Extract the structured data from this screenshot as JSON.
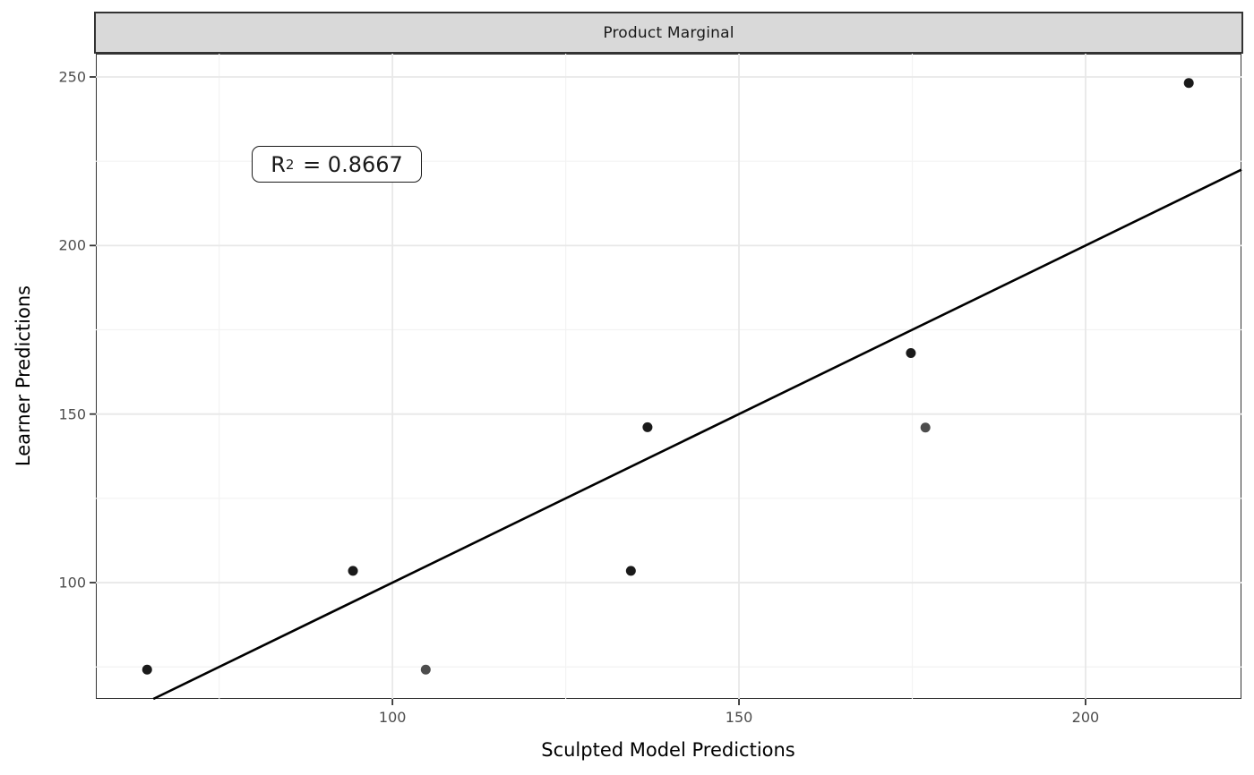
{
  "figure": {
    "strip_label": "Product Marginal",
    "annotation": {
      "base": "R",
      "sup": "2",
      "rest": " = 0.8667"
    }
  },
  "chart_data": {
    "type": "scatter",
    "facet_title": "Product Marginal",
    "xlabel": "Sculpted Model Predictions",
    "ylabel": "Learner Predictions",
    "xlim": [
      57.2,
      222.5
    ],
    "ylim": [
      65.5,
      256.9
    ],
    "x_major_ticks": [
      100,
      150,
      200
    ],
    "y_major_ticks": [
      100,
      150,
      200,
      250
    ],
    "x_minor_ticks": [
      75,
      125,
      175
    ],
    "y_minor_ticks": [
      75,
      125,
      175,
      225
    ],
    "grid": "major+minor",
    "legend": "none",
    "r_squared": 0.8667,
    "annotation_text": "R² = 0.8667",
    "points": [
      {
        "x": 64.6,
        "y": 74.2,
        "shade": "dark"
      },
      {
        "x": 94.3,
        "y": 103.5,
        "shade": "dark"
      },
      {
        "x": 104.8,
        "y": 74.2,
        "shade": "light"
      },
      {
        "x": 134.4,
        "y": 103.5,
        "shade": "dark"
      },
      {
        "x": 136.8,
        "y": 146.1,
        "shade": "dark"
      },
      {
        "x": 174.8,
        "y": 168.1,
        "shade": "dark"
      },
      {
        "x": 176.9,
        "y": 146.0,
        "shade": "light"
      },
      {
        "x": 214.9,
        "y": 248.2,
        "shade": "dark"
      }
    ],
    "fit_line": {
      "slope": 1,
      "intercept": 0,
      "x1": 65.5,
      "y1": 65.5,
      "x2": 222.5,
      "y2": 222.5
    },
    "colors": {
      "point_dark": "#1a1a1a",
      "point_light": "#4d4d4d",
      "line": "#000000",
      "grid_major": "#e8e8e8",
      "grid_minor": "#f3f3f3",
      "panel_border": "#333333",
      "strip_bg": "#d9d9d9",
      "strip_border": "#333333",
      "tick_color": "#333333",
      "tick_label_color": "#4d4d4d"
    }
  }
}
